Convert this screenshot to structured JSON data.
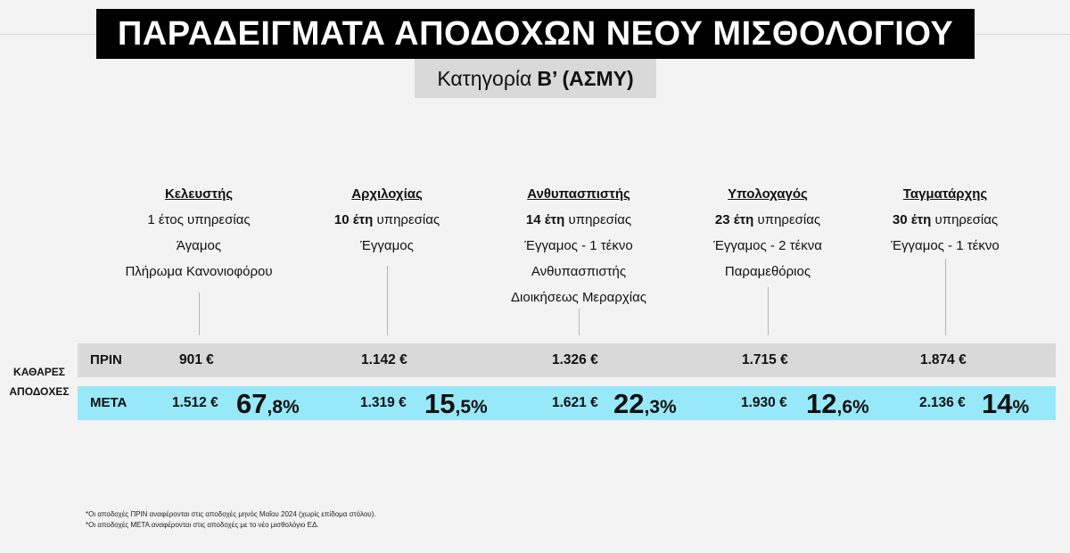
{
  "header": {
    "title": "ΠΑΡΑΔΕΙΓΜΑΤΑ ΑΠΟΔΟΧΩΝ ΝΕΟΥ ΜΙΣΘΟΛΟΓΙΟΥ",
    "subtitle_prefix": "Κατηγορία",
    "subtitle_strong": "Β’ (ΑΣΜΥ)"
  },
  "side_label": {
    "line1": "ΚΑΘΑΡΕΣ",
    "line2": "ΑΠΟΔΟΧΕΣ"
  },
  "rows": {
    "before_label": "ΠΡΙΝ",
    "after_label": "ΜΕΤΑ"
  },
  "columns": [
    {
      "rank": "Κελευστής",
      "years_num": "",
      "years_text": "1 έτος υπηρεσίας",
      "line3": "Άγαμος",
      "line4": "Πλήρωμα Κανονιοφόρου",
      "line5": "",
      "before": "901 €",
      "after": "1.512 €",
      "pct_main": "67",
      "pct_small": ",8%"
    },
    {
      "rank": "Αρχιλοχίας",
      "years_num": "10 έτη",
      "years_text": " υπηρεσίας",
      "line3": "Έγγαμος",
      "line4": "",
      "line5": "",
      "before": "1.142 €",
      "after": "1.319 €",
      "pct_main": "15",
      "pct_small": ",5%"
    },
    {
      "rank": "Ανθυπασπιστής",
      "years_num": "14 έτη",
      "years_text": " υπηρεσίας",
      "line3": "Έγγαμος - 1 τέκνο",
      "line4": "Ανθυπασπιστής",
      "line5": "Διοικήσεως Μεραρχίας",
      "before": "1.326 €",
      "after": "1.621 €",
      "pct_main": "22",
      "pct_small": ",3%"
    },
    {
      "rank": "Υπολοχαγός",
      "years_num": "23 έτη",
      "years_text": " υπηρεσίας",
      "line3": "Έγγαμος - 2 τέκνα",
      "line4": "Παραμεθόριος",
      "line5": "",
      "before": "1.715 €",
      "after": "1.930 €",
      "pct_main": "12",
      "pct_small": ",6%"
    },
    {
      "rank": "Ταγματάρχης",
      "years_num": "30 έτη",
      "years_text": " υπηρεσίας",
      "line3": "Έγγαμος - 1 τέκνο",
      "line4": "",
      "line5": "",
      "before": "1.874 €",
      "after": "2.136 €",
      "pct_main": "14",
      "pct_small": "%"
    }
  ],
  "notes": {
    "note1": "*Οι αποδοχές ΠΡΙΝ αναφέρονται στις αποδοχές μηνός Μαΐου 2024 (χωρίς επίδομα στόλου).",
    "note2": "*Οι αποδοχές ΜΕΤΑ αναφέρονται στις αποδοχές με το νέο μισθολόγιο ΕΔ."
  }
}
